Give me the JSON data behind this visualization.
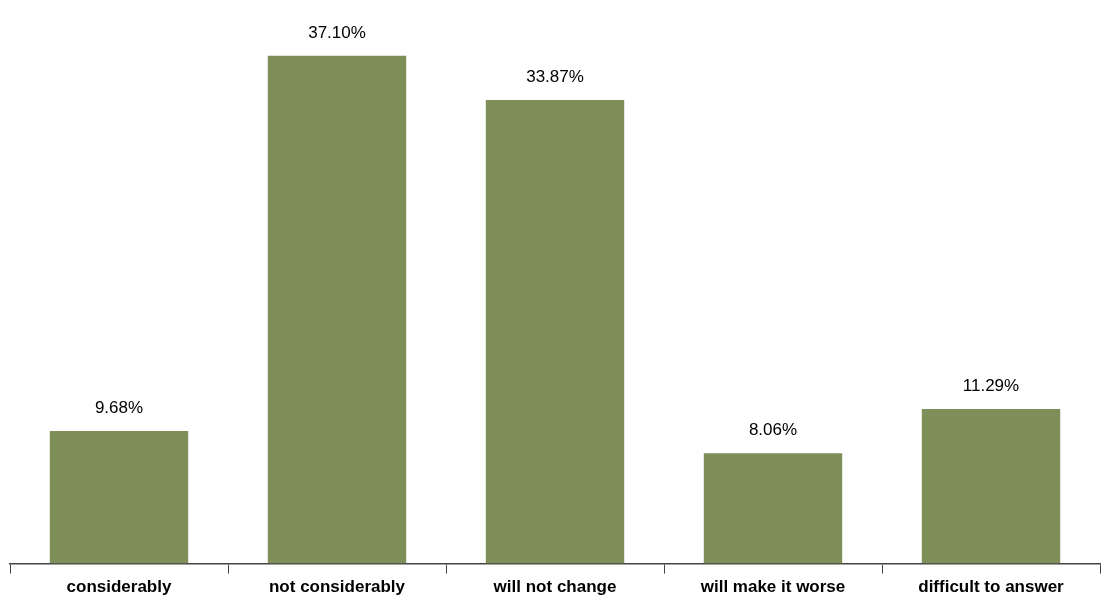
{
  "chart_data": {
    "type": "bar",
    "categories": [
      "considerably",
      "not considerably",
      "will not change",
      "will make it worse",
      "difficult to answer"
    ],
    "values": [
      9.68,
      37.1,
      33.87,
      8.06,
      11.29
    ],
    "value_labels": [
      "9.68%",
      "37.10%",
      "33.87%",
      "8.06%",
      "11.29%"
    ],
    "color": "#7f8f5a"
  }
}
